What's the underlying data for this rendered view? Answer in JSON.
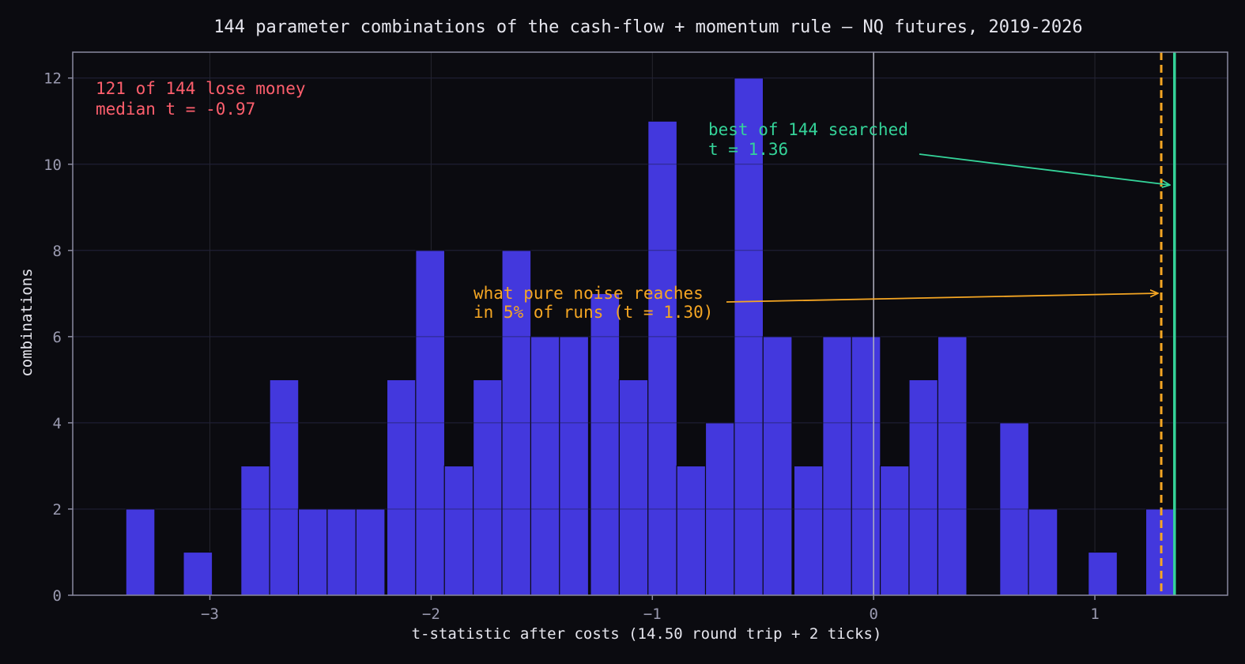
{
  "chart_data": {
    "type": "bar",
    "title": "144 parameter combinations of the cash-flow + momentum rule — NQ futures, 2019-2026",
    "xlabel": "t-statistic after costs (14.50 round trip + 2 ticks)",
    "ylabel": "combinations",
    "xlim": [
      -3.62,
      1.6
    ],
    "ylim": [
      0,
      12.6
    ],
    "x_ticks": [
      {
        "value": -3,
        "label": "−3"
      },
      {
        "value": -2,
        "label": "−2"
      },
      {
        "value": -1,
        "label": "−1"
      },
      {
        "value": 0,
        "label": "0"
      },
      {
        "value": 1,
        "label": "1"
      }
    ],
    "y_ticks": [
      {
        "value": 0,
        "label": "0"
      },
      {
        "value": 2,
        "label": "2"
      },
      {
        "value": 4,
        "label": "4"
      },
      {
        "value": 6,
        "label": "6"
      },
      {
        "value": 8,
        "label": "8"
      },
      {
        "value": 10,
        "label": "10"
      },
      {
        "value": 12,
        "label": "12"
      }
    ],
    "grid": true,
    "bin_width": 0.1313,
    "bins": [
      {
        "start": -3.38,
        "count": 2
      },
      {
        "start": -3.12,
        "count": 1
      },
      {
        "start": -2.86,
        "count": 3
      },
      {
        "start": -2.73,
        "count": 5
      },
      {
        "start": -2.6,
        "count": 2
      },
      {
        "start": -2.47,
        "count": 2
      },
      {
        "start": -2.34,
        "count": 2
      },
      {
        "start": -2.2,
        "count": 5
      },
      {
        "start": -2.07,
        "count": 8
      },
      {
        "start": -1.94,
        "count": 3
      },
      {
        "start": -1.81,
        "count": 5
      },
      {
        "start": -1.68,
        "count": 8
      },
      {
        "start": -1.55,
        "count": 6
      },
      {
        "start": -1.42,
        "count": 6
      },
      {
        "start": -1.28,
        "count": 7
      },
      {
        "start": -1.15,
        "count": 5
      },
      {
        "start": -1.02,
        "count": 11
      },
      {
        "start": -0.89,
        "count": 3
      },
      {
        "start": -0.76,
        "count": 4
      },
      {
        "start": -0.63,
        "count": 12
      },
      {
        "start": -0.5,
        "count": 6
      },
      {
        "start": -0.36,
        "count": 3
      },
      {
        "start": -0.23,
        "count": 6
      },
      {
        "start": -0.1,
        "count": 6
      },
      {
        "start": 0.03,
        "count": 3
      },
      {
        "start": 0.16,
        "count": 5
      },
      {
        "start": 0.29,
        "count": 6
      },
      {
        "start": 0.57,
        "count": 4
      },
      {
        "start": 0.7,
        "count": 2
      },
      {
        "start": 0.97,
        "count": 1
      },
      {
        "start": 1.23,
        "count": 2
      }
    ],
    "zero_line": 0,
    "noise_threshold": {
      "value": 1.3,
      "label_line1": "what pure noise reaches",
      "label_line2": "in 5% of runs (t = 1.30)"
    },
    "best": {
      "value": 1.36,
      "label_line1": "best of 144 searched",
      "label_line2": "t = 1.36"
    },
    "summary": {
      "line1": "121 of 144 lose money",
      "line2": "median t = -0.97"
    }
  },
  "colors": {
    "background": "#0b0b10",
    "bar_fill": "#4338dd",
    "bar_edge": "#0b0b10",
    "frame": "#8a8aa0",
    "grid": "#26262f",
    "zero_line": "#b0b0c0",
    "noise_line": "#f5a623",
    "best_line": "#34d399",
    "summary_text": "#ff5f6d",
    "text": "#e6e6ee",
    "tick_text": "#9a9ab0"
  }
}
